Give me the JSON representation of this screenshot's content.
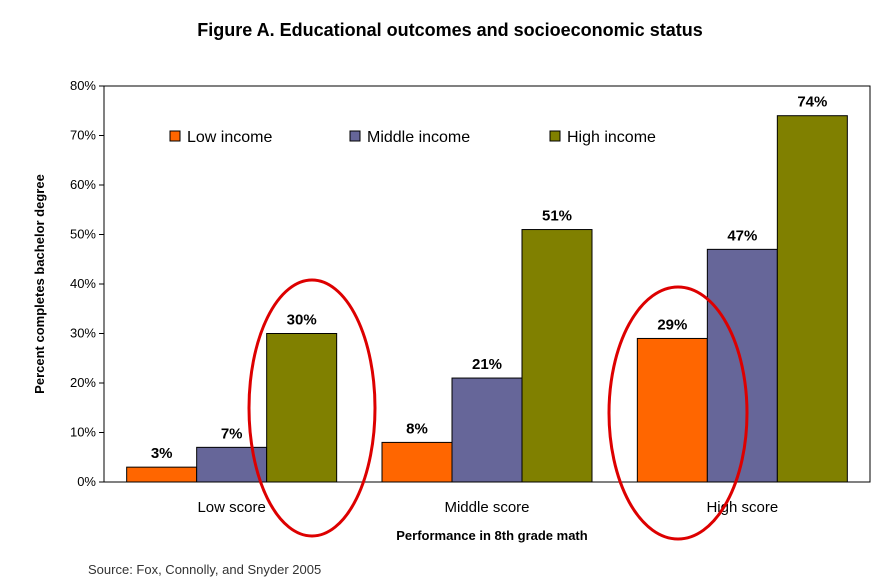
{
  "chart_data": {
    "type": "bar",
    "title": "Figure A. Educational outcomes and socioeconomic status",
    "xlabel": "Performance in 8th grade math",
    "ylabel": "Percent completes bachelor degree",
    "categories": [
      "Low score",
      "Middle score",
      "High score"
    ],
    "series": [
      {
        "name": "Low income",
        "values": [
          3,
          8,
          29
        ],
        "labels": [
          "3%",
          "8%",
          "29%"
        ],
        "color": "#ff6600"
      },
      {
        "name": "Middle income",
        "values": [
          7,
          21,
          47
        ],
        "labels": [
          "7%",
          "21%",
          "47%"
        ],
        "color": "#666699"
      },
      {
        "name": "High income",
        "values": [
          30,
          51,
          74
        ],
        "labels": [
          "30%",
          "51%",
          "74%"
        ],
        "color": "#808000"
      }
    ],
    "ylim": [
      0,
      80
    ],
    "yticks": [
      "0%",
      "10%",
      "20%",
      "30%",
      "40%",
      "50%",
      "60%",
      "70%",
      "80%"
    ],
    "grid": false,
    "legend_position": "top-left",
    "highlight_color": "#dd0000",
    "source": "Source: Fox, Connolly, and Snyder 2005"
  }
}
